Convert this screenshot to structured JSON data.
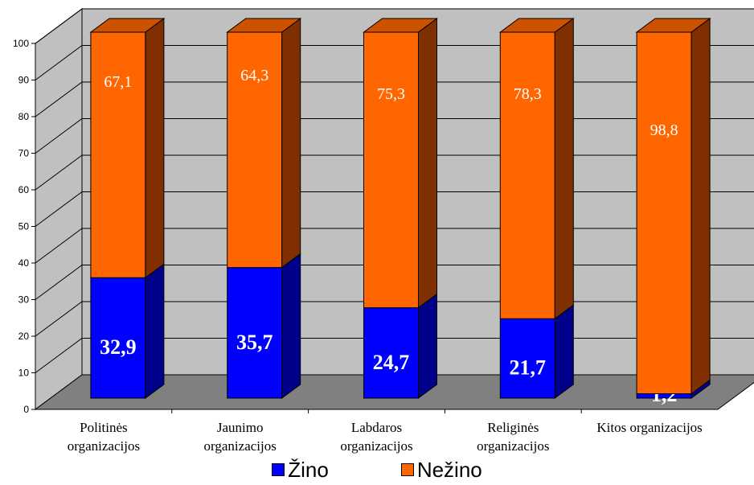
{
  "chart_data": {
    "type": "bar",
    "stacked": true,
    "three_d": true,
    "categories": [
      [
        "Politinės",
        "organizacijos"
      ],
      [
        "Jaunimo",
        "organizacijos"
      ],
      [
        "Labdaros",
        "organizacijos"
      ],
      [
        "Religinės",
        "organizacijos"
      ],
      [
        "Kitos organizacijos"
      ]
    ],
    "series": [
      {
        "name": "Žino",
        "values": [
          32.9,
          35.7,
          24.7,
          21.7,
          1.2
        ],
        "labels": [
          "32,9",
          "35,7",
          "24,7",
          "21,7",
          "1,2"
        ],
        "color": "#0000ff",
        "side_color": "#00008b"
      },
      {
        "name": "Nežino",
        "values": [
          67.1,
          64.3,
          75.3,
          78.3,
          98.8
        ],
        "labels": [
          "67,1",
          "64,3",
          "75,3",
          "78,3",
          "98,8"
        ],
        "color": "#ff6600",
        "side_color": "#803000"
      }
    ],
    "ylim": [
      0,
      100
    ],
    "yticks": [
      "0",
      "10",
      "20",
      "30",
      "40",
      "50",
      "60",
      "70",
      "80",
      "90",
      "100"
    ],
    "grid": true,
    "legend_position": "bottom",
    "colors": {
      "wall": "#c0c0c0",
      "floor": "#808080",
      "grid": "#000000"
    }
  }
}
